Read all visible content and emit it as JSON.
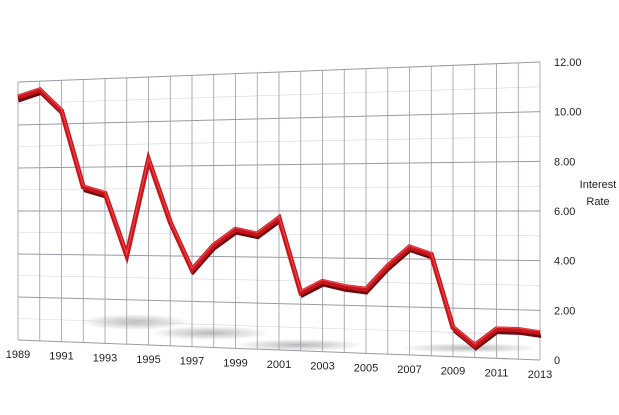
{
  "chart_data": {
    "type": "line",
    "title": "",
    "xlabel": "",
    "ylabel": "Interest Rate",
    "ylabel_lines": [
      "Interest",
      "Rate"
    ],
    "x_tick_labels": [
      "1989",
      "1991",
      "1993",
      "1995",
      "1997",
      "1999",
      "2001",
      "2003",
      "2005",
      "2007",
      "2009",
      "2011",
      "2013"
    ],
    "y_tick_labels": [
      "0",
      "2.00",
      "4.00",
      "6.00",
      "8.00",
      "10.00",
      "12.00"
    ],
    "xlim": [
      1989,
      2013
    ],
    "ylim": [
      0,
      12
    ],
    "grid": true,
    "legend": "none",
    "colors": {
      "line": "#c8141a",
      "line_side": "#6e0a0c",
      "grid": "#9a9aa6"
    },
    "series": [
      {
        "x": [
          1989,
          1990,
          1991,
          1992,
          1993,
          1994,
          1995,
          1996,
          1997,
          1998,
          1999,
          2000,
          2001,
          2002,
          2003,
          2004,
          2005,
          2006,
          2007,
          2008,
          2009,
          2010,
          2011,
          2012,
          2013
        ],
        "values": [
          11.3,
          11.6,
          10.6,
          7.1,
          6.8,
          4.0,
          8.3,
          5.5,
          3.4,
          4.5,
          5.2,
          5.0,
          5.7,
          2.5,
          3.0,
          2.8,
          2.7,
          3.7,
          4.5,
          4.2,
          1.2,
          0.5,
          1.2,
          1.2,
          1.1
        ]
      }
    ]
  }
}
